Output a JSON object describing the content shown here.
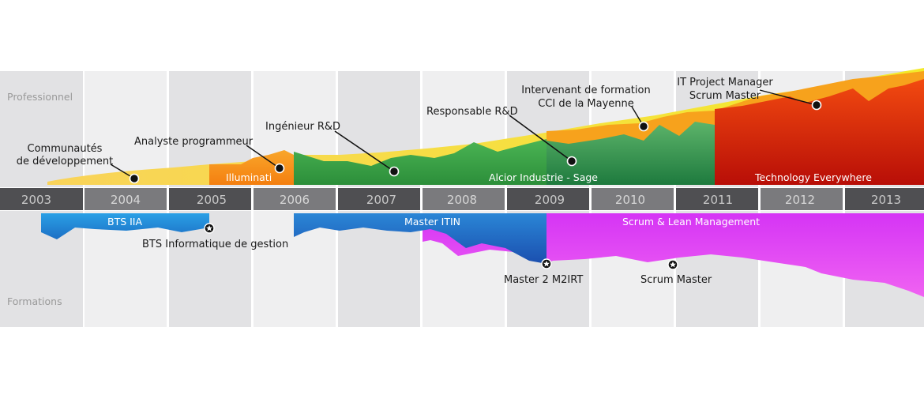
{
  "side_labels": {
    "top": "Professionnel",
    "bottom": "Formations"
  },
  "years": [
    "2003",
    "2004",
    "2005",
    "2006",
    "2007",
    "2008",
    "2009",
    "2010",
    "2011",
    "2012",
    "2013"
  ],
  "pro_labels": {
    "communautes_line1": "Communautés",
    "communautes_line2": "de développement",
    "analyste": "Analyste programmeur",
    "ingenieur": "Ingénieur R&D",
    "responsable": "Responsable R&D",
    "intervenant_line1": "Intervenant de formation",
    "intervenant_line2": "CCI de la Mayenne",
    "itpm_line1": "IT Project Manager",
    "itpm_line2": "Scrum Master"
  },
  "companies": {
    "illuminati": "Illuminati",
    "alcior": "Alcior Industrie - Sage",
    "techev": "Technology Everywhere"
  },
  "formations": {
    "bts_iia": "BTS IIA",
    "bts_info": "BTS Informatique de gestion",
    "master_itin": "Master ITIN",
    "master2": "Master 2 M2IRT",
    "scrum_lean": "Scrum & Lean Management",
    "scrum_master": "Scrum Master"
  },
  "colors": {
    "yellow": "#f5e12f",
    "yellow_light": "#f6d85a",
    "orange": "#f7941d",
    "green": "#3ea64a",
    "red": "#d92a0c",
    "blue": "#2a8fd6",
    "magenta": "#e040f0",
    "band_light": "#eeeeef",
    "band_dark": "#e2e2e4",
    "year_bar": "#555558"
  }
}
